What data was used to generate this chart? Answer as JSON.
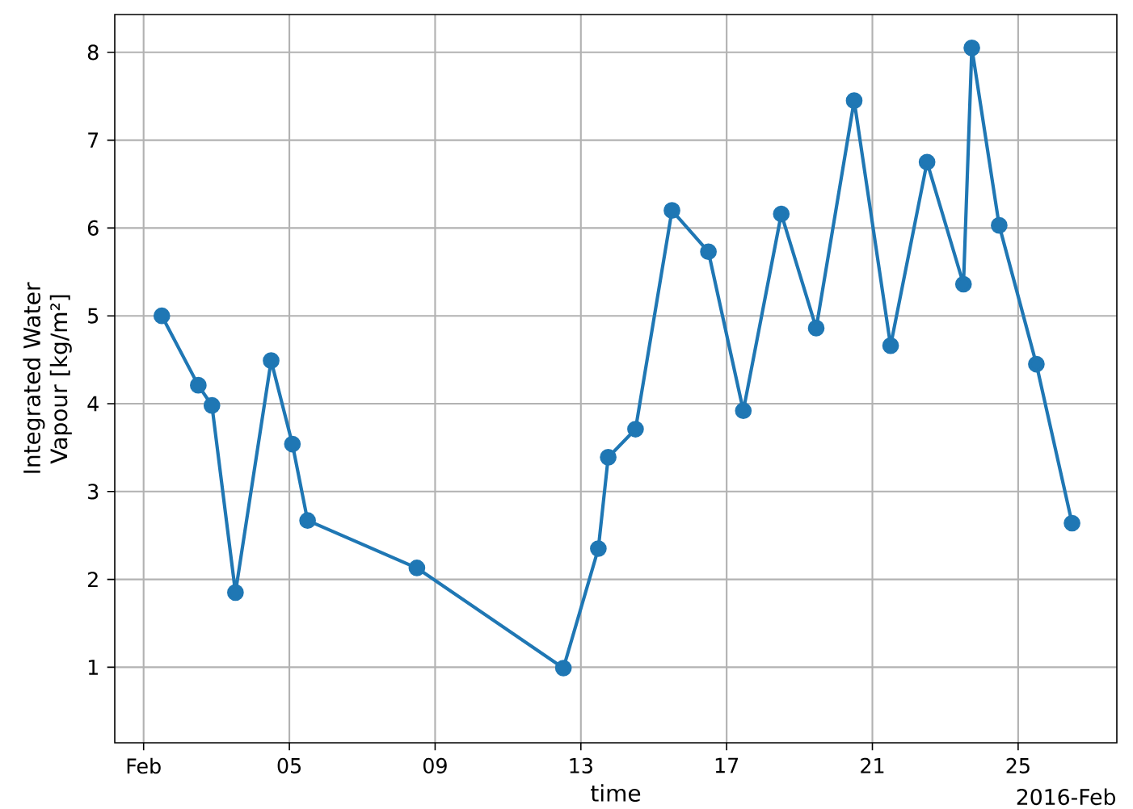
{
  "chart_data": {
    "type": "line",
    "xlabel": "time",
    "ylabel": "Integrated Water Vapour [kg/m²]",
    "x": [
      "2016-02-01T12:00",
      "2016-02-02T12:00",
      "2016-02-02T21:00",
      "2016-02-03T12:30",
      "2016-02-04T12:00",
      "2016-02-05T02:00",
      "2016-02-05T12:00",
      "2016-02-08T12:00",
      "2016-02-12T12:30",
      "2016-02-13T11:30",
      "2016-02-13T18:00",
      "2016-02-14T12:00",
      "2016-02-15T12:00",
      "2016-02-16T12:00",
      "2016-02-17T11:00",
      "2016-02-18T12:00",
      "2016-02-19T11:00",
      "2016-02-20T12:00",
      "2016-02-21T12:00",
      "2016-02-22T12:00",
      "2016-02-23T12:00",
      "2016-02-23T17:30",
      "2016-02-24T11:30",
      "2016-02-25T12:00",
      "2016-02-26T11:30"
    ],
    "series": [
      {
        "color": "#1f77b4",
        "values": [
          5.0,
          4.21,
          3.98,
          1.85,
          4.49,
          3.54,
          2.67,
          2.13,
          0.99,
          2.35,
          3.39,
          3.71,
          6.2,
          5.73,
          3.92,
          6.16,
          4.86,
          7.45,
          4.66,
          6.75,
          5.36,
          8.05,
          6.03,
          4.45,
          2.64
        ]
      }
    ],
    "xlim": [
      "2016-01-31T05:00",
      "2016-02-27T17:00"
    ],
    "ylim": [
      0.14,
      8.43
    ],
    "xticks": [
      {
        "value": "2016-02-01",
        "label": "Feb"
      },
      {
        "value": "2016-02-05",
        "label": "05"
      },
      {
        "value": "2016-02-09",
        "label": "09"
      },
      {
        "value": "2016-02-13",
        "label": "13"
      },
      {
        "value": "2016-02-17",
        "label": "17"
      },
      {
        "value": "2016-02-21",
        "label": "21"
      },
      {
        "value": "2016-02-25",
        "label": "25"
      }
    ],
    "yticks": [
      1,
      2,
      3,
      4,
      5,
      6,
      7,
      8
    ],
    "annotations": [
      "2016-Feb"
    ],
    "grid": true,
    "marker": "circle",
    "line_style": "solid"
  }
}
